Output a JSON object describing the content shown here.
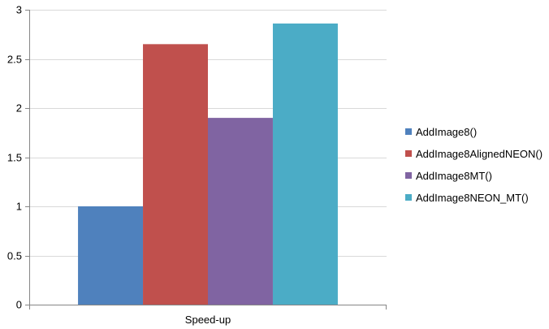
{
  "chart_data": {
    "type": "bar",
    "categories": [
      "Speed-up"
    ],
    "series": [
      {
        "name": "AddImage8()",
        "values": [
          1.0
        ],
        "color": "#4F81BD"
      },
      {
        "name": "AddImage8AlignedNEON()",
        "values": [
          2.65
        ],
        "color": "#C0504D"
      },
      {
        "name": "AddImage8MT()",
        "values": [
          1.9
        ],
        "color": "#8064A2"
      },
      {
        "name": "AddImage8NEON_MT()",
        "values": [
          2.86
        ],
        "color": "#4BACC6"
      }
    ],
    "yticks": [
      "0",
      "0.5",
      "1",
      "1.5",
      "2",
      "2.5",
      "3"
    ],
    "ylim": [
      0,
      3
    ],
    "grid": true,
    "legend": "right"
  }
}
